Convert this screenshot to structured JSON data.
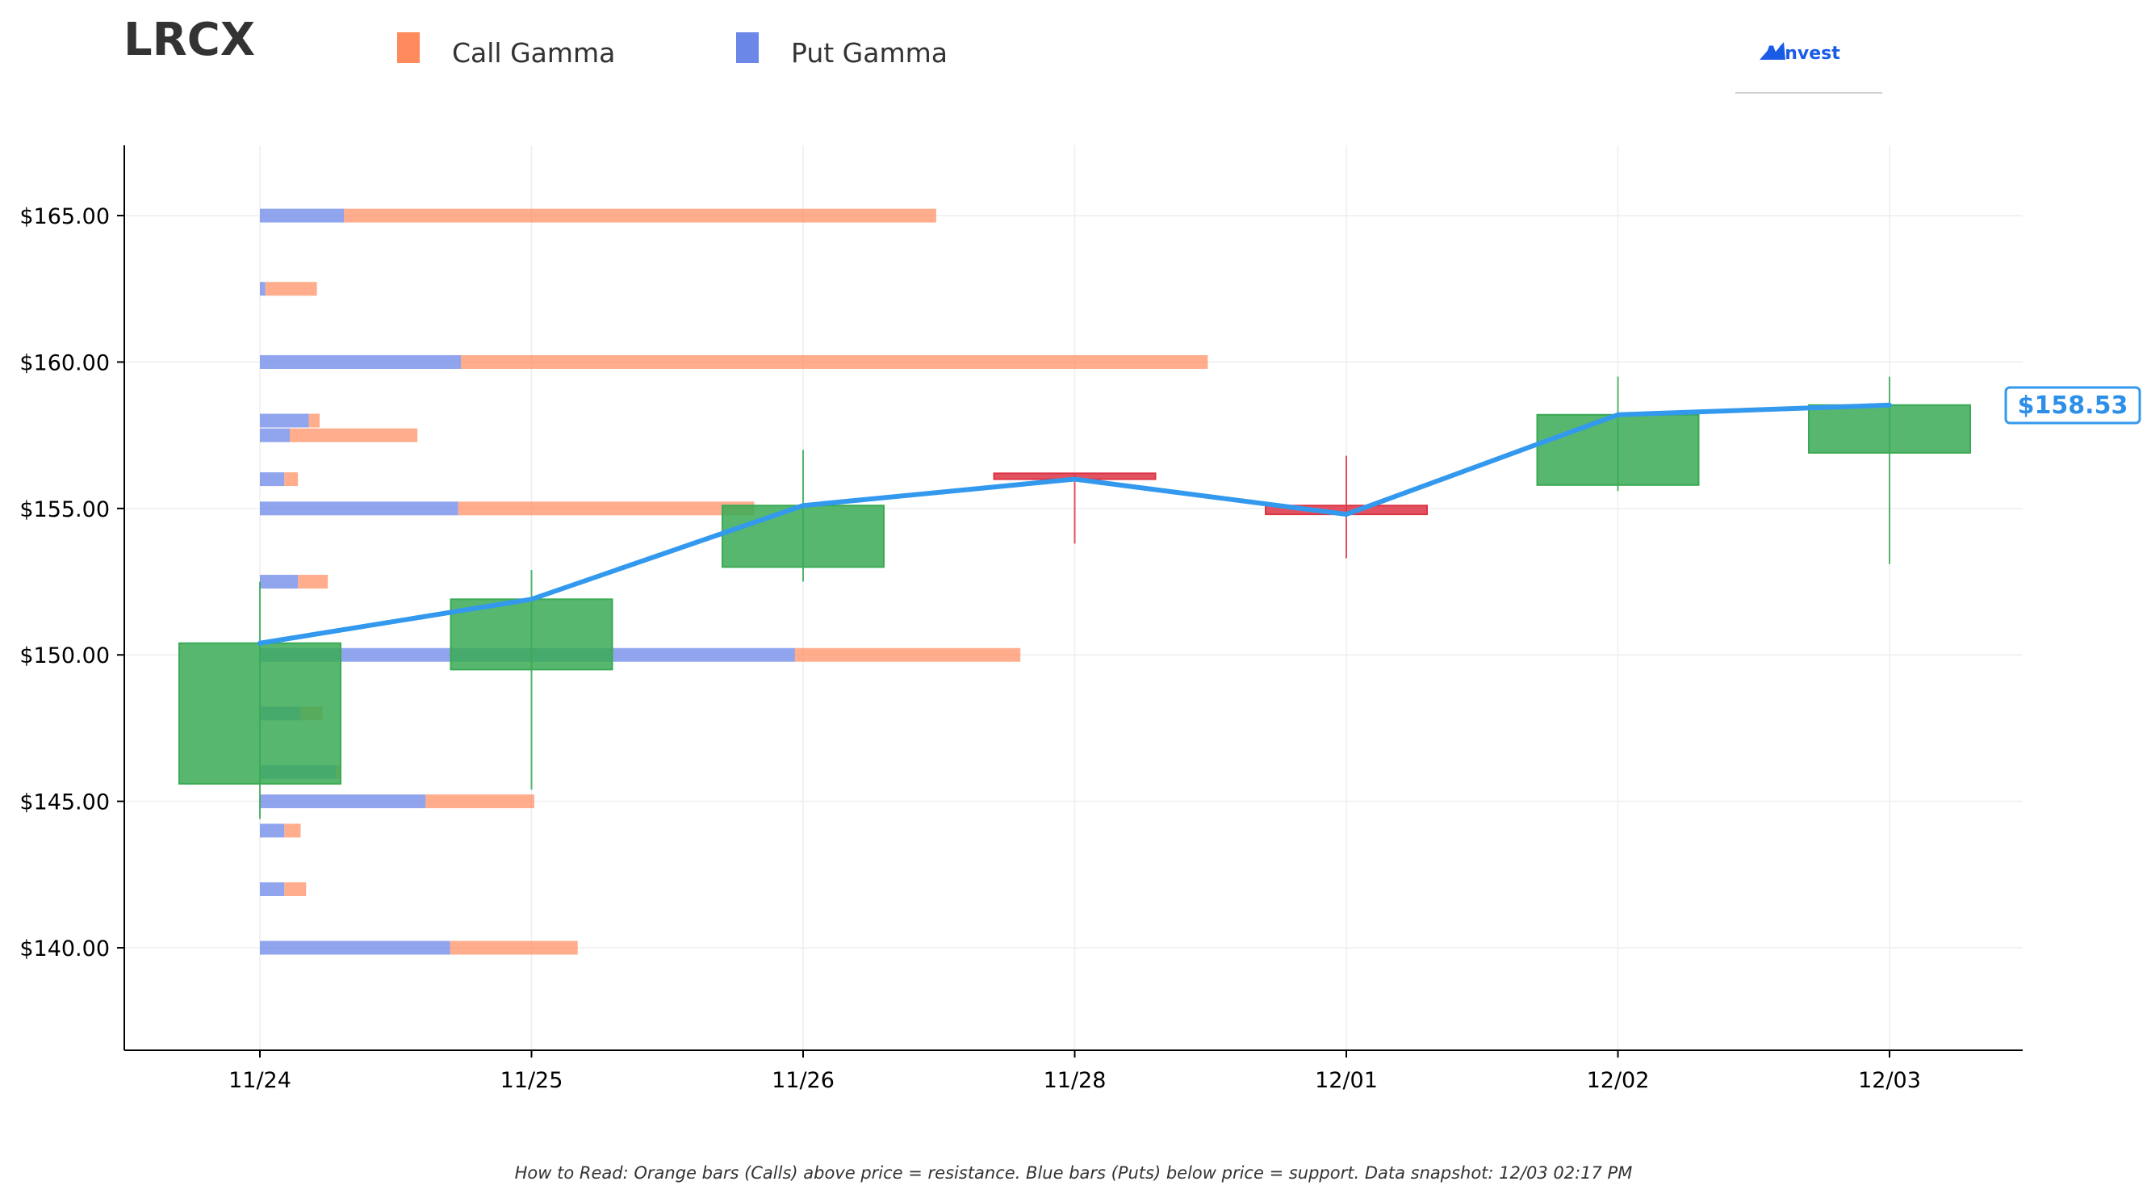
{
  "header": {
    "ticker": "LRCX",
    "brand": "AInvest"
  },
  "legend": [
    {
      "label": "Call Gamma",
      "color": "#ff8a5c"
    },
    {
      "label": "Put Gamma",
      "color": "#6b87e8"
    }
  ],
  "footnote": "How to Read: Orange bars (Calls) above price = resistance. Blue bars (Puts) below price = support. Data snapshot: 12/03 02:17 PM",
  "chart_data": {
    "type": "candlestick",
    "categories": [
      "11/24",
      "11/25",
      "11/26",
      "11/28",
      "12/01",
      "12/02",
      "12/03"
    ],
    "ylim": [
      136.5,
      167.4
    ],
    "yticks": [
      140,
      145,
      150,
      155,
      160,
      165
    ],
    "ytick_labels": [
      "$140.00",
      "$145.00",
      "$150.00",
      "$155.00",
      "$160.00",
      "$165.00"
    ],
    "grid": true,
    "colors": {
      "up": "#3aaa55",
      "down": "#dc3545",
      "close_line": "#3399ee",
      "call": "#ff8a5c",
      "put": "#6b87e8"
    },
    "candles": [
      {
        "date": "11/24",
        "open": 145.6,
        "high": 152.5,
        "low": 144.4,
        "close": 150.4
      },
      {
        "date": "11/25",
        "open": 149.5,
        "high": 152.9,
        "low": 145.4,
        "close": 151.9
      },
      {
        "date": "11/26",
        "open": 153.0,
        "high": 157.0,
        "low": 152.5,
        "close": 155.1
      },
      {
        "date": "11/28",
        "open": 156.2,
        "high": 156.2,
        "low": 153.8,
        "close": 156.0
      },
      {
        "date": "12/01",
        "open": 155.1,
        "high": 156.8,
        "low": 153.3,
        "close": 154.8
      },
      {
        "date": "12/02",
        "open": 155.8,
        "high": 159.5,
        "low": 155.6,
        "close": 158.2
      },
      {
        "date": "12/03",
        "open": 156.9,
        "high": 159.5,
        "low": 153.1,
        "close": 158.53
      }
    ],
    "gamma_units": "category widths",
    "gamma_levels": [
      {
        "strike": 165.0,
        "put": 0.31,
        "call": 2.18
      },
      {
        "strike": 162.5,
        "put": 0.02,
        "call": 0.19
      },
      {
        "strike": 160.0,
        "put": 0.74,
        "call": 2.75
      },
      {
        "strike": 158.0,
        "put": 0.18,
        "call": 0.04
      },
      {
        "strike": 157.5,
        "put": 0.11,
        "call": 0.47
      },
      {
        "strike": 156.0,
        "put": 0.09,
        "call": 0.05
      },
      {
        "strike": 155.0,
        "put": 0.73,
        "call": 1.09
      },
      {
        "strike": 152.5,
        "put": 0.14,
        "call": 0.11
      },
      {
        "strike": 150.0,
        "put": 1.97,
        "call": 0.83
      },
      {
        "strike": 148.0,
        "put": 0.15,
        "call": 0.08
      },
      {
        "strike": 146.0,
        "put": 0.28,
        "call": 0.02
      },
      {
        "strike": 145.0,
        "put": 0.61,
        "call": 0.4
      },
      {
        "strike": 144.0,
        "put": 0.09,
        "call": 0.06
      },
      {
        "strike": 142.0,
        "put": 0.09,
        "call": 0.08
      },
      {
        "strike": 140.0,
        "put": 0.7,
        "call": 0.47
      }
    ],
    "last_price_label": "$158.53"
  }
}
